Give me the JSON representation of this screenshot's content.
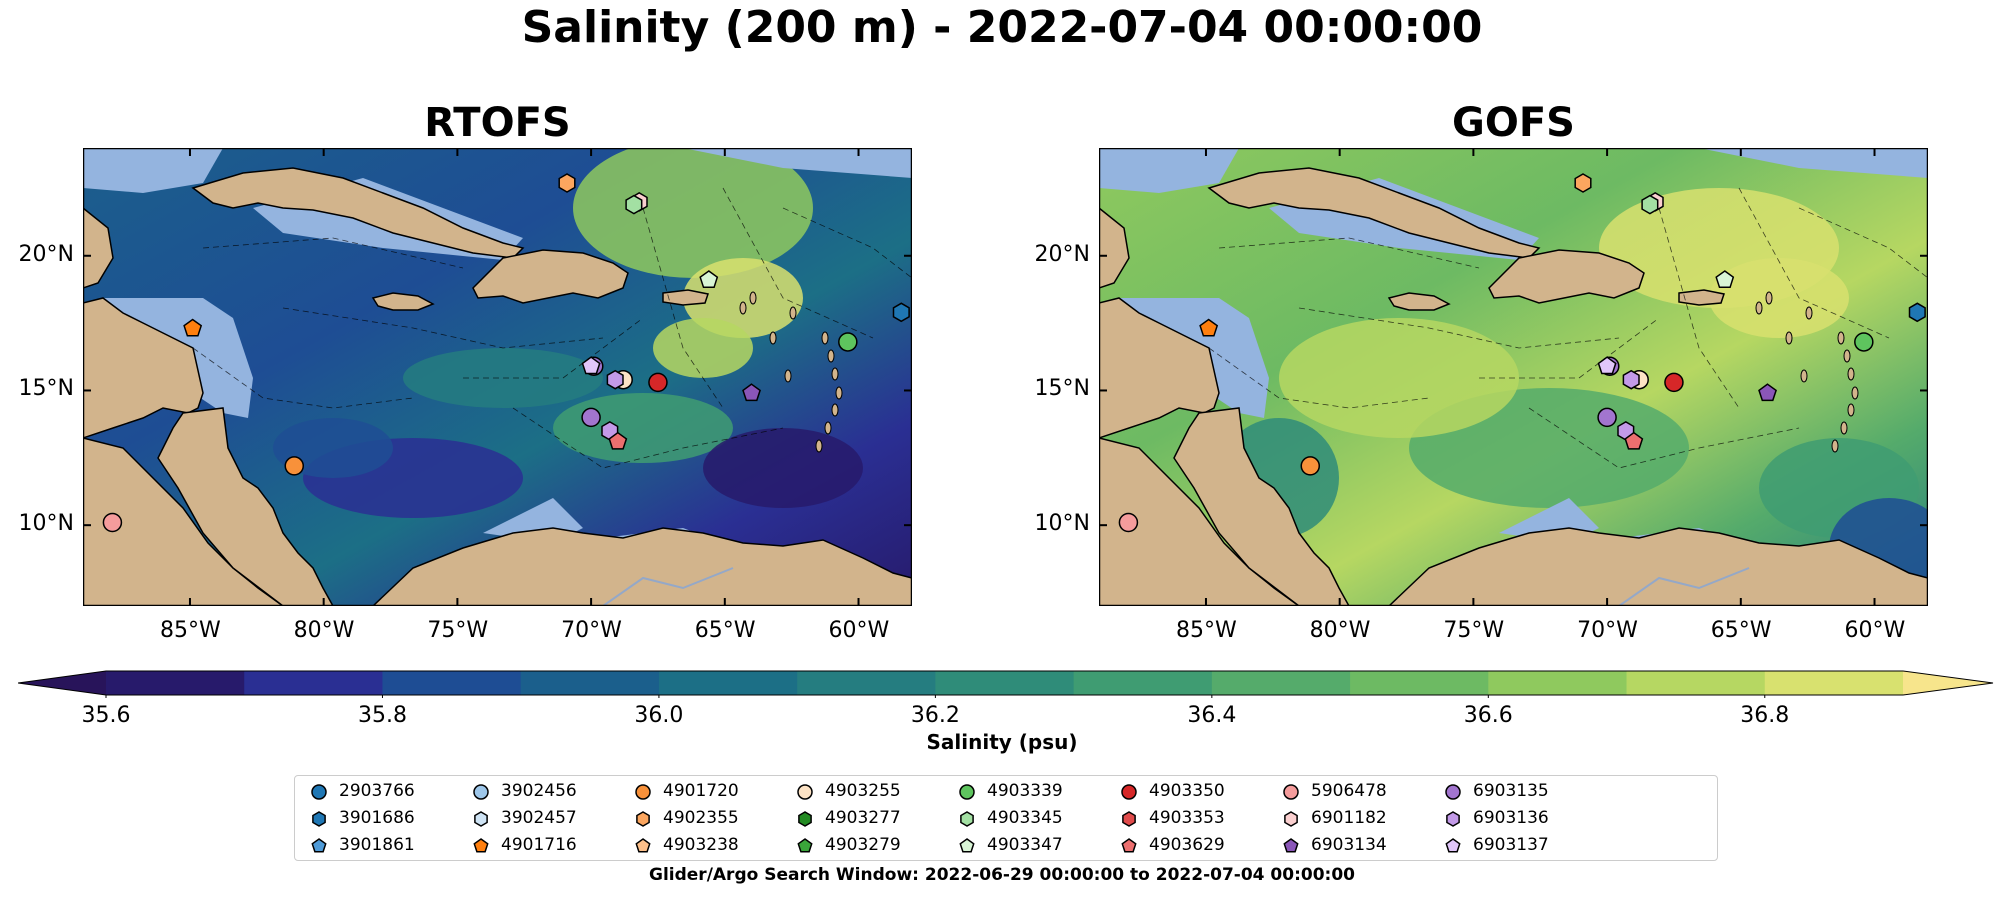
{
  "title": "Salinity (200 m) - 2022-07-04 00:00:00",
  "panels": [
    {
      "title": "RTOFS",
      "theme": "low"
    },
    {
      "title": "GOFS",
      "theme": "high"
    }
  ],
  "lat_ticks": [
    "20°N",
    "15°N",
    "10°N"
  ],
  "lon_ticks": [
    "85°W",
    "80°W",
    "75°W",
    "70°W",
    "65°W",
    "60°W"
  ],
  "colorbar": {
    "label": "Salinity (psu)",
    "ticks": [
      "35.6",
      "35.8",
      "36.0",
      "36.2",
      "36.4",
      "36.6",
      "36.8"
    ],
    "colors": [
      "#271a6b",
      "#2a2f93",
      "#1e4d94",
      "#1b5f8c",
      "#1c6f86",
      "#257d80",
      "#2f8c79",
      "#3f9c72",
      "#55ab6b",
      "#6dba63",
      "#8fc95e",
      "#b6d762",
      "#d8e16f"
    ],
    "under_color": "#28145a",
    "over_color": "#f7e58c"
  },
  "map_colors": {
    "land": "#d2b48c",
    "shelf": "#94b4df"
  },
  "legend": [
    {
      "id": "2903766",
      "marker": "circle",
      "color": "#1f77b4"
    },
    {
      "id": "3901686",
      "marker": "hexagon",
      "color": "#1f77b4"
    },
    {
      "id": "3901861",
      "marker": "pentagon",
      "color": "#4f9bd8"
    },
    {
      "id": "3902456",
      "marker": "circle",
      "color": "#9ec7ea"
    },
    {
      "id": "3902457",
      "marker": "hexagon",
      "color": "#cfe4f5"
    },
    {
      "id": "4901716",
      "marker": "pentagon",
      "color": "#ff7f0e"
    },
    {
      "id": "4901720",
      "marker": "circle",
      "color": "#f8913a"
    },
    {
      "id": "4902355",
      "marker": "hexagon",
      "color": "#fca65f"
    },
    {
      "id": "4903238",
      "marker": "pentagon",
      "color": "#fdc08a"
    },
    {
      "id": "4903255",
      "marker": "circle",
      "color": "#fde3c5"
    },
    {
      "id": "4903277",
      "marker": "hexagon",
      "color": "#238b23"
    },
    {
      "id": "4903279",
      "marker": "pentagon",
      "color": "#3aa53a"
    },
    {
      "id": "4903339",
      "marker": "circle",
      "color": "#5ec45e"
    },
    {
      "id": "4903345",
      "marker": "hexagon",
      "color": "#a3e0a3"
    },
    {
      "id": "4903347",
      "marker": "pentagon",
      "color": "#d9f5d6"
    },
    {
      "id": "4903350",
      "marker": "circle",
      "color": "#d62728"
    },
    {
      "id": "4903353",
      "marker": "hexagon",
      "color": "#e04b4b"
    },
    {
      "id": "4903629",
      "marker": "pentagon",
      "color": "#ec6f6f"
    },
    {
      "id": "5906478",
      "marker": "circle",
      "color": "#f59c9c"
    },
    {
      "id": "6901182",
      "marker": "hexagon",
      "color": "#fbd0d0"
    },
    {
      "id": "6903134",
      "marker": "pentagon",
      "color": "#8a56b8"
    },
    {
      "id": "6903135",
      "marker": "circle",
      "color": "#a275cf"
    },
    {
      "id": "6903136",
      "marker": "hexagon",
      "color": "#c39ae8"
    },
    {
      "id": "6903137",
      "marker": "pentagon",
      "color": "#e1c6fa"
    }
  ],
  "search_window": "Glider/Argo Search Window: 2022-06-29 00:00:00 to 2022-07-04 00:00:00"
}
